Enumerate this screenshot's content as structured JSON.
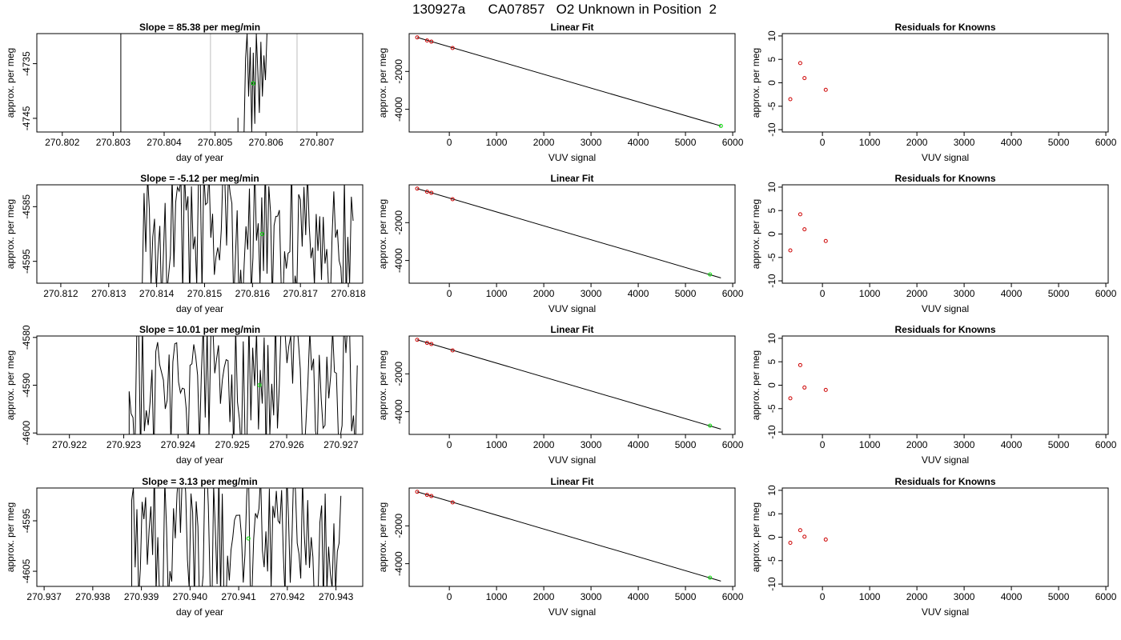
{
  "figure_title": "130927a      CA07857   O2 Unknown in Position  2",
  "colors": {
    "trace": "#000000",
    "fit_line": "#000000",
    "known_points": "#cd0000",
    "unknown_point": "#00dd00",
    "vertical_markers": "#bebebe",
    "frame": "#000000"
  },
  "rows": [
    {
      "time_panel": {
        "title": "Slope =  85.38  per meg/min",
        "xlabel": "day of year",
        "ylabel": "approx. per meg",
        "xlim": [
          270.8015,
          270.8079
        ],
        "ylim": [
          -4747.5,
          -4729.5
        ],
        "xticks": [
          "270.802",
          "270.803",
          "270.804",
          "270.805",
          "270.806",
          "270.807"
        ],
        "yticks": [
          "-4735",
          "-4745"
        ],
        "vertical_markers": [
          270.80491,
          270.80661
        ],
        "trace_segments": [
          {
            "x": [
              270.80315,
              270.80315
            ],
            "y": [
              -4729.5,
              -4747.5
            ]
          },
          {
            "x": [
              270.80545,
              270.80545
            ],
            "y": [
              -4744.9,
              -4747.5
            ]
          },
          {
            "x": [
              270.80557,
              270.8056,
              270.80563,
              270.80566,
              270.80569,
              270.80572,
              270.80575,
              270.80578,
              270.80581,
              270.80584,
              270.80587,
              270.8059,
              270.80593,
              270.80596,
              270.80599,
              270.80602
            ],
            "y": [
              -4747.5,
              -4734.0,
              -4729.5,
              -4741.0,
              -4732.0,
              -4747.5,
              -4733.0,
              -4746.0,
              -4729.5,
              -4736.5,
              -4744.0,
              -4731.0,
              -4741.0,
              -4733.5,
              -4738.0,
              -4729.5
            ]
          }
        ],
        "unknown_marker": {
          "x": 270.80575,
          "y": -4738.6
        }
      },
      "fit_panel": {
        "title": "Linear Fit",
        "xlabel": "VUV signal",
        "ylabel": "approx. per meg",
        "xlim": [
          -850,
          6050
        ],
        "ylim": [
          -5200,
          0
        ],
        "xticks": [
          0,
          1000,
          2000,
          3000,
          4000,
          5000,
          6000
        ],
        "yticks": [
          -2000,
          -4000
        ],
        "fit_line": {
          "x": [
            -680,
            5750
          ],
          "y": [
            -200,
            -4880
          ]
        },
        "knowns": [
          {
            "x": -680,
            "y": -200
          },
          {
            "x": -470,
            "y": -365
          },
          {
            "x": -380,
            "y": -425
          },
          {
            "x": 70,
            "y": -760
          }
        ],
        "unknown": {
          "x": 5750,
          "y": -4880
        }
      },
      "resid_panel": {
        "title": "Residuals for Knowns",
        "xlabel": "VUV signal",
        "ylabel": "approx. per meg",
        "xlim": [
          -850,
          6050
        ],
        "ylim": [
          -10.5,
          10.5
        ],
        "xticks": [
          0,
          1000,
          2000,
          3000,
          4000,
          5000,
          6000
        ],
        "yticks": [
          10,
          5,
          0,
          -5,
          -10
        ],
        "knowns": [
          {
            "x": -680,
            "y": -3.5
          },
          {
            "x": -470,
            "y": 4.2
          },
          {
            "x": -380,
            "y": 1.0
          },
          {
            "x": 70,
            "y": -1.5
          }
        ]
      }
    },
    {
      "time_panel": {
        "title": "Slope =  -5.12  per meg/min",
        "xlabel": "day of year",
        "ylabel": "approx. per meg",
        "xlim": [
          270.8115,
          270.8183
        ],
        "ylim": [
          -4599.0,
          -4581.0
        ],
        "xticks": [
          "270.812",
          "270.813",
          "270.814",
          "270.815",
          "270.816",
          "270.817",
          "270.818"
        ],
        "yticks": [
          "-4585",
          "-4595"
        ],
        "vertical_markers": [],
        "noise_start": 270.8137,
        "noise_end": 270.8181,
        "unknown_marker": {
          "x": 270.8162,
          "y": -4590.0
        }
      },
      "fit_panel": {
        "title": "Linear Fit",
        "xlabel": "VUV signal",
        "ylabel": "approx. per meg",
        "xlim": [
          -850,
          6050
        ],
        "ylim": [
          -5200,
          0
        ],
        "xticks": [
          0,
          1000,
          2000,
          3000,
          4000,
          5000,
          6000
        ],
        "yticks": [
          -2000,
          -4000
        ],
        "fit_line": {
          "x": [
            -680,
            5750
          ],
          "y": [
            -200,
            -4920
          ]
        },
        "knowns": [
          {
            "x": -680,
            "y": -200
          },
          {
            "x": -470,
            "y": -365
          },
          {
            "x": -380,
            "y": -425
          },
          {
            "x": 70,
            "y": -760
          }
        ],
        "unknown": {
          "x": 5520,
          "y": -4740
        }
      },
      "resid_panel": {
        "title": "Residuals for Knowns",
        "xlabel": "VUV signal",
        "ylabel": "approx. per meg",
        "xlim": [
          -850,
          6050
        ],
        "ylim": [
          -10.5,
          10.5
        ],
        "xticks": [
          0,
          1000,
          2000,
          3000,
          4000,
          5000,
          6000
        ],
        "yticks": [
          10,
          5,
          0,
          -5,
          -10
        ],
        "knowns": [
          {
            "x": -680,
            "y": -3.5
          },
          {
            "x": -470,
            "y": 4.2
          },
          {
            "x": -380,
            "y": 1.0
          },
          {
            "x": 70,
            "y": -1.5
          }
        ]
      }
    },
    {
      "time_panel": {
        "title": "Slope =  10.01  per meg/min",
        "xlabel": "day of year",
        "ylabel": "approx. per meg",
        "xlim": [
          270.9214,
          270.9274
        ],
        "ylim": [
          -4600.3,
          -4579.7
        ],
        "xticks": [
          "270.922",
          "270.923",
          "270.924",
          "270.925",
          "270.926",
          "270.927"
        ],
        "yticks": [
          "-4580",
          "-4590",
          "-4600"
        ],
        "vertical_markers": [],
        "noise_start": 270.9231,
        "noise_end": 270.9273,
        "unknown_marker": {
          "x": 270.9255,
          "y": -4590.0
        }
      },
      "fit_panel": {
        "title": "Linear Fit",
        "xlabel": "VUV signal",
        "ylabel": "approx. per meg",
        "xlim": [
          -850,
          6050
        ],
        "ylim": [
          -5200,
          0
        ],
        "xticks": [
          0,
          1000,
          2000,
          3000,
          4000,
          5000,
          6000
        ],
        "yticks": [
          -2000,
          -4000
        ],
        "fit_line": {
          "x": [
            -680,
            5750
          ],
          "y": [
            -200,
            -4920
          ]
        },
        "knowns": [
          {
            "x": -680,
            "y": -200
          },
          {
            "x": -470,
            "y": -365
          },
          {
            "x": -380,
            "y": -425
          },
          {
            "x": 70,
            "y": -760
          }
        ],
        "unknown": {
          "x": 5520,
          "y": -4740
        }
      },
      "resid_panel": {
        "title": "Residuals for Knowns",
        "xlabel": "VUV signal",
        "ylabel": "approx. per meg",
        "xlim": [
          -850,
          6050
        ],
        "ylim": [
          -10.5,
          10.5
        ],
        "xticks": [
          0,
          1000,
          2000,
          3000,
          4000,
          5000,
          6000
        ],
        "yticks": [
          10,
          5,
          0,
          -5,
          -10
        ],
        "knowns": [
          {
            "x": -680,
            "y": -2.8
          },
          {
            "x": -470,
            "y": 4.3
          },
          {
            "x": -380,
            "y": -0.5
          },
          {
            "x": 70,
            "y": -1.0
          }
        ]
      }
    },
    {
      "time_panel": {
        "title": "Slope =  3.13  per meg/min",
        "xlabel": "day of year",
        "ylabel": "approx. per meg",
        "xlim": [
          270.93685,
          270.94355
        ],
        "ylim": [
          -4608.0,
          -4588.5
        ],
        "xticks": [
          "270.937",
          "270.938",
          "270.939",
          "270.940",
          "270.941",
          "270.942",
          "270.943"
        ],
        "yticks": [
          "-4595",
          "-4605"
        ],
        "vertical_markers": [],
        "noise_start": 270.9388,
        "noise_end": 270.9431,
        "unknown_marker": {
          "x": 270.9412,
          "y": -4598.5
        }
      },
      "fit_panel": {
        "title": "Linear Fit",
        "xlabel": "VUV signal",
        "ylabel": "approx. per meg",
        "xlim": [
          -850,
          6050
        ],
        "ylim": [
          -5200,
          0
        ],
        "xticks": [
          0,
          1000,
          2000,
          3000,
          4000,
          5000,
          6000
        ],
        "yticks": [
          -2000,
          -4000
        ],
        "fit_line": {
          "x": [
            -680,
            5750
          ],
          "y": [
            -200,
            -4920
          ]
        },
        "knowns": [
          {
            "x": -680,
            "y": -200
          },
          {
            "x": -470,
            "y": -365
          },
          {
            "x": -380,
            "y": -425
          },
          {
            "x": 70,
            "y": -760
          }
        ],
        "unknown": {
          "x": 5520,
          "y": -4740
        }
      },
      "resid_panel": {
        "title": "Residuals for Knowns",
        "xlabel": "VUV signal",
        "ylabel": "approx. per meg",
        "xlim": [
          -850,
          6050
        ],
        "ylim": [
          -10.5,
          10.5
        ],
        "xticks": [
          0,
          1000,
          2000,
          3000,
          4000,
          5000,
          6000
        ],
        "yticks": [
          10,
          5,
          0,
          -5,
          -10
        ],
        "knowns": [
          {
            "x": -680,
            "y": -1.2
          },
          {
            "x": -470,
            "y": 1.5
          },
          {
            "x": -380,
            "y": 0.1
          },
          {
            "x": 70,
            "y": -0.5
          }
        ]
      }
    }
  ]
}
